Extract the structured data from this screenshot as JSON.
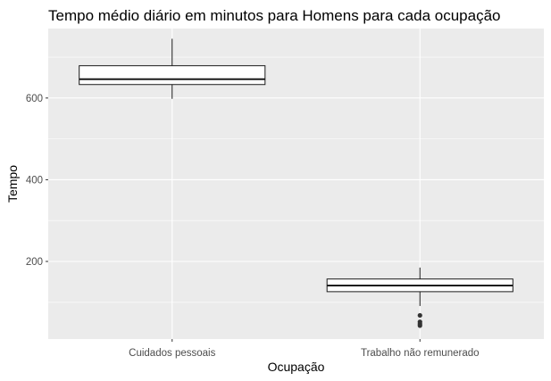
{
  "chart_data": {
    "type": "boxplot",
    "title": "Tempo médio diário em minutos para Homens para cada ocupação",
    "xlabel": "Ocupação",
    "ylabel": "Tempo",
    "categories": [
      "Cuidados pessoais",
      "Trabalho não remunerado"
    ],
    "ylim": [
      10,
      770
    ],
    "yticks": [
      200,
      400,
      600
    ],
    "grid": true,
    "boxes": [
      {
        "category": "Cuidados pessoais",
        "whisker_low": 598,
        "q1": 633,
        "median": 646,
        "q3": 679,
        "whisker_high": 745,
        "outliers": []
      },
      {
        "category": "Trabalho não remunerado",
        "whisker_low": 91,
        "q1": 126,
        "median": 141,
        "q3": 157,
        "whisker_high": 185,
        "outliers": [
          68,
          52,
          47,
          43
        ]
      }
    ],
    "colors": {
      "panel_background": "#ebebeb",
      "grid": "#ffffff",
      "box_fill": "#ffffff",
      "box_stroke": "#1a1a1a",
      "outlier": "#333333"
    }
  }
}
